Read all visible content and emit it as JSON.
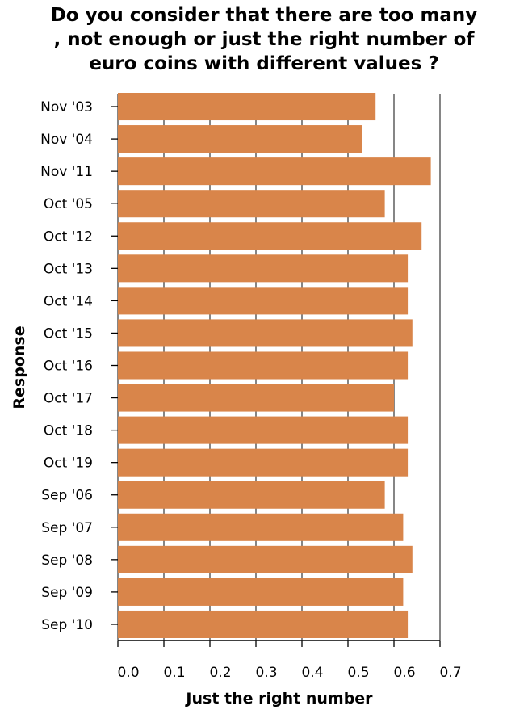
{
  "chart_data": {
    "type": "bar",
    "orientation": "horizontal",
    "title": "Do you consider that there are too many\n, not enough or just the right number of\neuro coins with different values ?",
    "xlabel": "Just the right number",
    "ylabel": "Response",
    "categories": [
      "Nov '03",
      "Nov '04",
      "Nov '11",
      "Oct '05",
      "Oct '12",
      "Oct '13",
      "Oct '14",
      "Oct '15",
      "Oct '16",
      "Oct '17",
      "Oct '18",
      "Oct '19",
      "Sep '06",
      "Sep '07",
      "Sep '08",
      "Sep '09",
      "Sep '10"
    ],
    "values": [
      0.56,
      0.53,
      0.68,
      0.58,
      0.66,
      0.63,
      0.63,
      0.64,
      0.63,
      0.6,
      0.63,
      0.63,
      0.58,
      0.62,
      0.64,
      0.62,
      0.63
    ],
    "xlim": [
      0,
      0.7
    ],
    "xticks": [
      "0.0",
      "0.1",
      "0.2",
      "0.3",
      "0.4",
      "0.5",
      "0.6",
      "0.7"
    ],
    "grid": true,
    "bar_color": "#d9854a",
    "grid_color": "#444444"
  }
}
